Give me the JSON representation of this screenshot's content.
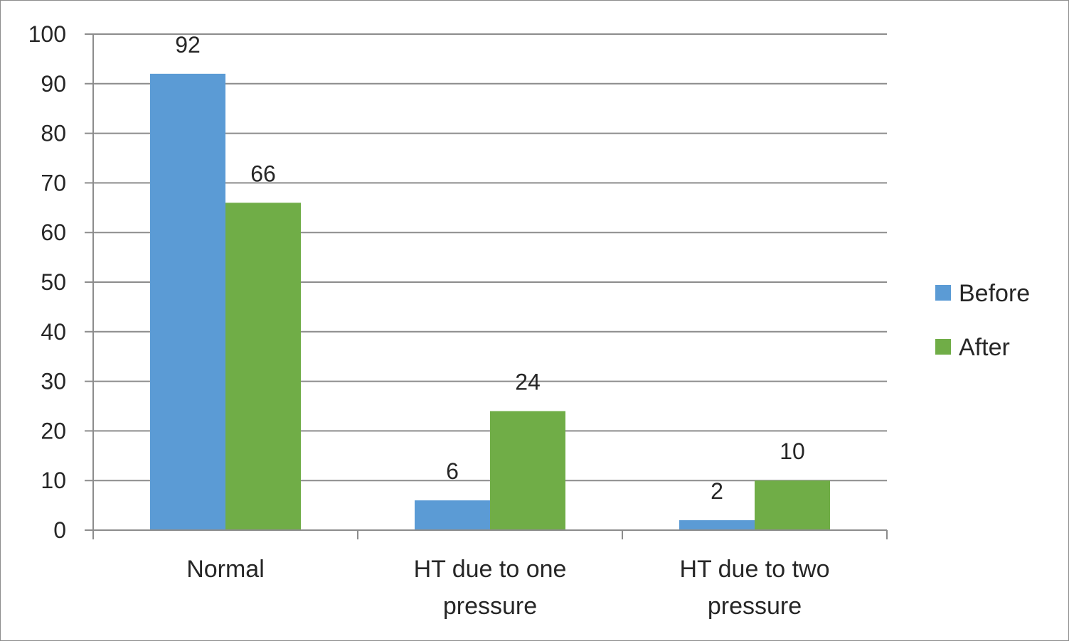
{
  "chart_data": {
    "type": "bar",
    "title": "",
    "xlabel": "",
    "ylabel": "",
    "categories": [
      [
        "Normal"
      ],
      [
        "HT due to one",
        "pressure"
      ],
      [
        "HT due to two",
        "pressure"
      ]
    ],
    "series": [
      {
        "name": "Before",
        "color": "#5b9bd5",
        "values": [
          92,
          6,
          2
        ]
      },
      {
        "name": "After",
        "color": "#70ad47",
        "values": [
          66,
          24,
          10
        ]
      }
    ],
    "ylim": [
      0,
      100
    ],
    "yticks": [
      0,
      10,
      20,
      30,
      40,
      50,
      60,
      70,
      80,
      90,
      100
    ],
    "grid": true,
    "legend_position": "right",
    "data_labels": true
  }
}
